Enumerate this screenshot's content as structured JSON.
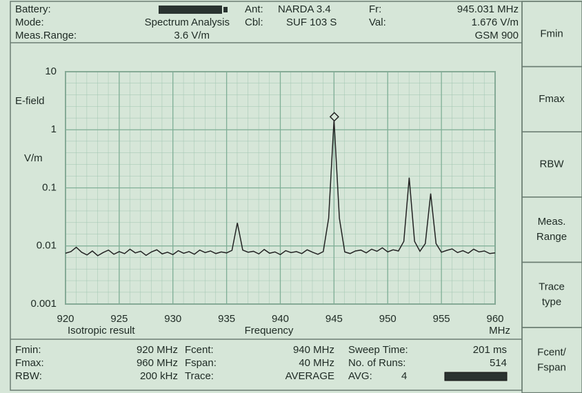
{
  "header": {
    "battery_label": "Battery:",
    "mode_label": "Mode:",
    "mode": "Spectrum Analysis",
    "range_label": "Meas.Range:",
    "range": "3.6 V/m",
    "ant_label": "Ant:",
    "ant": "NARDA 3.4",
    "cbl_label": "Cbl:",
    "cbl": "SUF 103 S",
    "fr_label": "Fr:",
    "fr": "945.031 MHz",
    "val_label": "Val:",
    "val": "1.676 V/m",
    "band": "GSM 900"
  },
  "footer": {
    "fmin_label": "Fmin:",
    "fmin": "920 MHz",
    "fmax_label": "Fmax:",
    "fmax": "960 MHz",
    "rbw_label": "RBW:",
    "rbw": "200 kHz",
    "fcent_label": "Fcent:",
    "fcent": "940 MHz",
    "fspan_label": "Fspan:",
    "fspan": "40 MHz",
    "trace_label": "Trace:",
    "trace": "AVERAGE",
    "sweep_label": "Sweep Time:",
    "sweep": "201 ms",
    "runs_label": "No. of Runs:",
    "runs": "514",
    "avg_label": "AVG:",
    "avg": "4"
  },
  "softkeys": [
    [
      "Fmin"
    ],
    [
      "Fmax"
    ],
    [
      "RBW"
    ],
    [
      "Meas.",
      "Range"
    ],
    [
      "Trace",
      "type"
    ],
    [
      "Fcent/",
      "Fspan"
    ]
  ],
  "chart_data": {
    "type": "line",
    "y_label": "E-field",
    "y_unit": "V/m",
    "x_label": "Frequency",
    "x_unit": "MHz",
    "note": "Isotropic result",
    "log_y": true,
    "grid": true,
    "color": "#222222",
    "xlim": [
      920,
      960
    ],
    "xticks": [
      920,
      925,
      930,
      935,
      940,
      945,
      950,
      955,
      960
    ],
    "ylim": [
      0.001,
      10
    ],
    "yticks": [
      0.001,
      0.01,
      0.1,
      1,
      10
    ],
    "marker": {
      "x": 945.031,
      "y": 1.676
    },
    "x": [
      920,
      920.5,
      921,
      921.5,
      922,
      922.5,
      923,
      923.5,
      924,
      924.5,
      925,
      925.5,
      926,
      926.5,
      927,
      927.5,
      928,
      928.5,
      929,
      929.5,
      930,
      930.5,
      931,
      931.5,
      932,
      932.5,
      933,
      933.5,
      934,
      934.5,
      935,
      935.5,
      936,
      936.5,
      937,
      937.5,
      938,
      938.5,
      939,
      939.5,
      940,
      940.5,
      941,
      941.5,
      942,
      942.5,
      943,
      943.5,
      944,
      944.5,
      945,
      945.5,
      946,
      946.5,
      947,
      947.5,
      948,
      948.5,
      949,
      949.5,
      950,
      950.5,
      951,
      951.5,
      952,
      952.5,
      953,
      953.5,
      954,
      954.5,
      955,
      955.5,
      956,
      956.5,
      957,
      957.5,
      958,
      958.5,
      959,
      959.5,
      960
    ],
    "values": [
      0.0075,
      0.008,
      0.0095,
      0.0078,
      0.007,
      0.0082,
      0.0068,
      0.0077,
      0.0085,
      0.0072,
      0.008,
      0.0074,
      0.0088,
      0.0076,
      0.0081,
      0.0069,
      0.0079,
      0.0086,
      0.0073,
      0.0078,
      0.0071,
      0.0083,
      0.0075,
      0.008,
      0.0072,
      0.0085,
      0.0077,
      0.0082,
      0.0074,
      0.0079,
      0.0076,
      0.0084,
      0.025,
      0.0085,
      0.0078,
      0.0081,
      0.0073,
      0.0087,
      0.0075,
      0.0079,
      0.0071,
      0.0083,
      0.0077,
      0.008,
      0.0074,
      0.0086,
      0.0078,
      0.0072,
      0.008,
      0.03,
      1.5,
      0.03,
      0.0079,
      0.0074,
      0.0082,
      0.0085,
      0.0076,
      0.0088,
      0.0081,
      0.0093,
      0.0079,
      0.0086,
      0.0082,
      0.012,
      0.15,
      0.012,
      0.0081,
      0.011,
      0.08,
      0.011,
      0.0078,
      0.0084,
      0.0089,
      0.0077,
      0.0083,
      0.0075,
      0.0088,
      0.0079,
      0.0082,
      0.0074,
      0.0076
    ]
  }
}
